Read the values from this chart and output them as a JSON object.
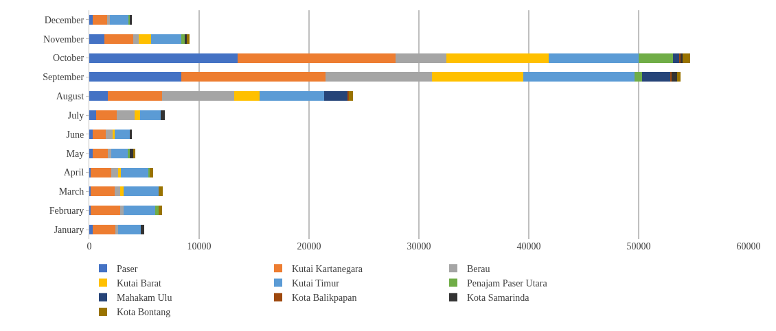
{
  "chart_data": {
    "type": "bar",
    "orientation": "horizontal",
    "stacked": true,
    "categories": [
      "December",
      "November",
      "October",
      "September",
      "August",
      "July",
      "June",
      "May",
      "April",
      "March",
      "February",
      "January"
    ],
    "series": [
      {
        "name": "Paser",
        "color": "#4472c4",
        "values": [
          300,
          1400,
          13500,
          8400,
          1700,
          600,
          300,
          300,
          100,
          100,
          100,
          300
        ]
      },
      {
        "name": "Kutai Kartanegara",
        "color": "#ed7d31",
        "values": [
          1300,
          2600,
          14400,
          13100,
          4900,
          1900,
          1200,
          1400,
          1900,
          2200,
          2700,
          2100
        ]
      },
      {
        "name": "Berau",
        "color": "#a5a5a5",
        "values": [
          300,
          500,
          4600,
          9700,
          6600,
          1600,
          600,
          300,
          600,
          500,
          300,
          200
        ]
      },
      {
        "name": "Kutai Barat",
        "color": "#ffc000",
        "values": [
          0,
          1100,
          9300,
          8300,
          2300,
          500,
          200,
          0,
          300,
          300,
          0,
          0
        ]
      },
      {
        "name": "Kutai Timur",
        "color": "#5b9bd5",
        "values": [
          1700,
          2800,
          8200,
          10100,
          5900,
          1900,
          1400,
          1500,
          2500,
          3200,
          2900,
          2100
        ]
      },
      {
        "name": "Penajam Paser Utara",
        "color": "#70ad47",
        "values": [
          100,
          300,
          3100,
          700,
          0,
          0,
          0,
          200,
          100,
          0,
          300,
          0
        ]
      },
      {
        "name": "Mahakam Ulu",
        "color": "#264478",
        "values": [
          0,
          0,
          600,
          2600,
          2100,
          0,
          0,
          0,
          0,
          0,
          0,
          0
        ]
      },
      {
        "name": "Kota Balikpapan",
        "color": "#9e480e",
        "values": [
          0,
          0,
          100,
          100,
          100,
          0,
          0,
          0,
          0,
          0,
          0,
          0
        ]
      },
      {
        "name": "Kota Samarinda",
        "color": "#333333",
        "values": [
          200,
          200,
          200,
          500,
          0,
          400,
          200,
          300,
          0,
          0,
          0,
          300
        ]
      },
      {
        "name": "Kota Bontang",
        "color": "#997300",
        "values": [
          0,
          200,
          700,
          300,
          400,
          0,
          0,
          200,
          300,
          400,
          300,
          0
        ]
      }
    ],
    "xlim": [
      0,
      60000
    ],
    "xticks": [
      0,
      10000,
      20000,
      30000,
      40000,
      50000,
      60000
    ],
    "grid": "x",
    "legend": "bottom"
  }
}
